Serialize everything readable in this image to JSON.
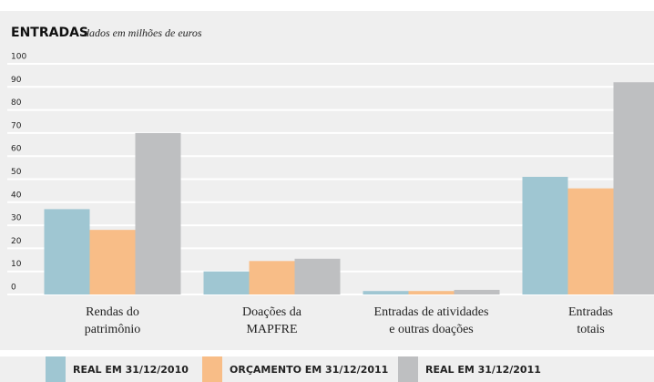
{
  "chart_data": {
    "type": "bar",
    "title": "ENTRADAS",
    "subtitle": "dados em milhões de euros",
    "categories": [
      [
        "Rendas do",
        "patrimônio"
      ],
      [
        "Doações da",
        "MAPFRE"
      ],
      [
        "Entradas de atividades",
        "e outras doações"
      ],
      [
        "Entradas",
        "totais"
      ]
    ],
    "series": [
      {
        "name": "REAL EM 31/12/2010",
        "color": "#9fc6d2",
        "values": [
          37,
          10,
          1.5,
          51
        ]
      },
      {
        "name": "ORÇAMENTO EM 31/12/2011",
        "color": "#f8bd87",
        "values": [
          28,
          14.5,
          1.5,
          46
        ]
      },
      {
        "name": "REAL EM 31/12/2011",
        "color": "#bebfc1",
        "values": [
          70,
          15.5,
          2,
          92
        ]
      }
    ],
    "ylim": [
      0,
      100
    ],
    "yticks": [
      0,
      10,
      20,
      30,
      40,
      50,
      60,
      70,
      80,
      90,
      100
    ],
    "grid": true,
    "legend": "bottom"
  }
}
